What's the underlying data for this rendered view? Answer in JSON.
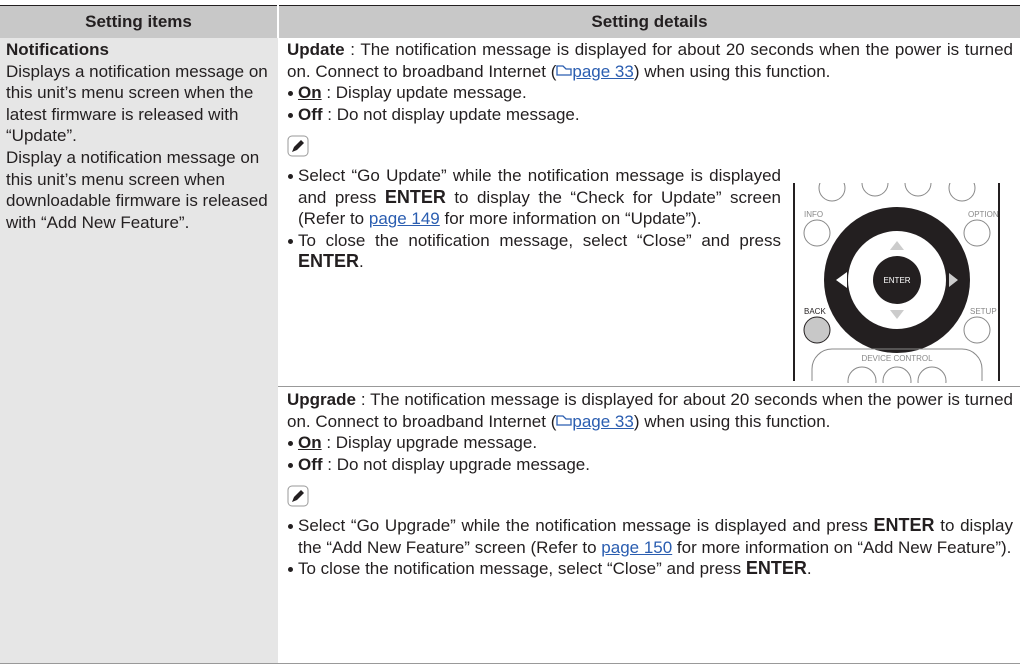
{
  "table": {
    "headers": [
      "Setting items",
      "Setting details"
    ],
    "item": {
      "title": "Notifications",
      "description": [
        "Displays a notification message on this unit’s menu screen when the latest firmware is released with “Update”.",
        "Display a notification message on this unit’s menu screen when downloadable firmware is released with “Add New Feature”."
      ]
    },
    "update": {
      "name": "Update",
      "text_1": " : The notification message is displayed for about 20 seconds when the power is turned on. Connect to broadband Internet (",
      "link": "page 33",
      "text_2": ") when using this function.",
      "options": [
        {
          "label": "On",
          "text": " : Display update message."
        },
        {
          "label": "Off",
          "text": " : Do not display update message."
        }
      ],
      "notes": [
        [
          "Select “Go Update” while the notification message is displayed and press ",
          "ENTER",
          " to display the “Check for Update” screen (Refer to ",
          "page 149",
          " for more information on “Update”)."
        ],
        [
          "To close the notification message, select “Close” and press ",
          "ENTER",
          "."
        ]
      ]
    },
    "upgrade": {
      "name": "Upgrade",
      "text_1": " : The notification message is displayed for about 20 seconds when the power is turned on. Connect to broadband Internet (",
      "link": "page 33",
      "text_2": ") when using this function.",
      "options": [
        {
          "label": "On",
          "text": " : Display upgrade message."
        },
        {
          "label": "Off",
          "text": " : Do not display upgrade message."
        }
      ],
      "notes": [
        [
          "Select “Go Upgrade” while the notification message is displayed and press ",
          "ENTER",
          " to display the “Add New Feature” screen (Refer to ",
          "page 150",
          " for more information on “Add New Feature”)."
        ],
        [
          "To close the notification message, select “Close” and press ",
          "ENTER",
          "."
        ]
      ]
    },
    "remote_labels": [
      "INFO",
      "OPTION",
      "ENTER",
      "BACK",
      "SETUP",
      "DEVICE CONTROL"
    ]
  }
}
